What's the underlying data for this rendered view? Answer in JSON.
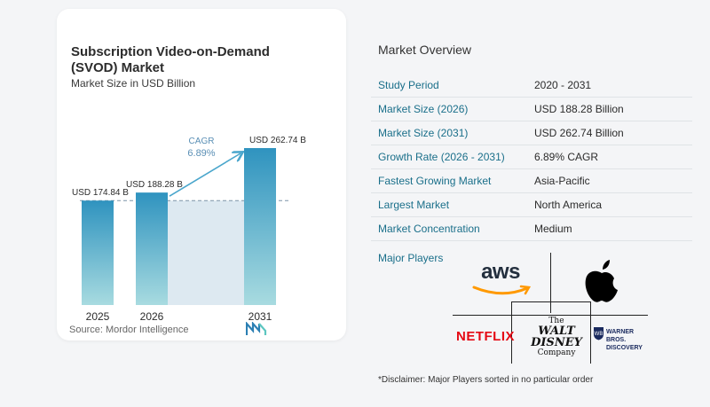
{
  "card": {
    "title": "Subscription Video-on-Demand (SVOD) Market",
    "subtitle": "Market Size in USD Billion",
    "source": "Source:  Mordor Intelligence"
  },
  "chart_data": {
    "type": "bar",
    "title": "Subscription Video-on-Demand (SVOD) Market",
    "subtitle": "Market Size in USD Billion",
    "categories": [
      "2025",
      "2026",
      "2031"
    ],
    "values": [
      174.84,
      188.28,
      262.74
    ],
    "value_labels": [
      "USD 174.84 B",
      "USD 188.28 B",
      "USD 262.74 B"
    ],
    "ylim": [
      0,
      262.74
    ],
    "annotation": {
      "label": "CAGR",
      "value": "6.89%"
    },
    "colors": {
      "bar_top": "#2f93bf",
      "bar_bottom": "#a8dbe0",
      "band": "#dde9f1",
      "arrow": "#4aa6cc",
      "cagr_text": "#5a8fb5"
    }
  },
  "overview": {
    "title": "Market Overview",
    "rows": [
      {
        "key": "Study Period",
        "value": "2020 - 2031"
      },
      {
        "key": "Market Size (2026)",
        "value": "USD 188.28 Billion"
      },
      {
        "key": "Market Size (2031)",
        "value": "USD 262.74 Billion"
      },
      {
        "key": "Growth Rate (2026 - 2031)",
        "value": "6.89% CAGR"
      },
      {
        "key": "Fastest Growing Market",
        "value": "Asia-Pacific"
      },
      {
        "key": "Largest Market",
        "value": "North America"
      },
      {
        "key": "Market Concentration",
        "value": "Medium"
      }
    ],
    "players_label": "Major Players",
    "players": {
      "aws": "aws",
      "netflix": "NETFLIX",
      "disney_1": "The",
      "disney_2": "WALT DISNEY",
      "disney_3": "Company",
      "wb_1": "WARNER BROS.",
      "wb_2": "DISCOVERY"
    },
    "disclaimer": "*Disclaimer: Major Players sorted in no particular order"
  }
}
